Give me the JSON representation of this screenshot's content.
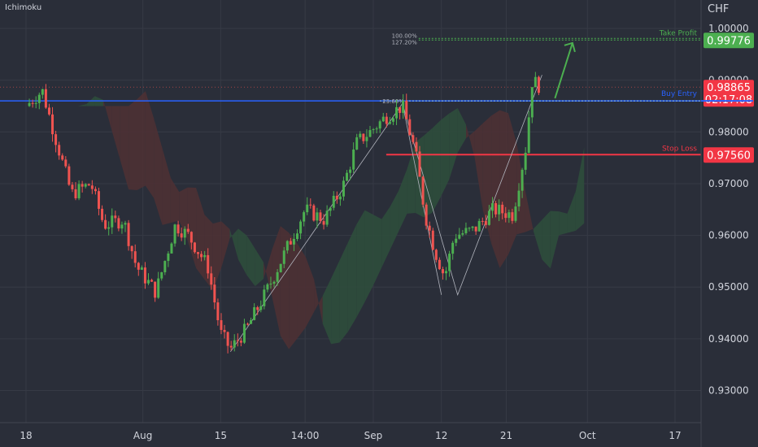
{
  "indicator_label": "Ichimoku",
  "currency": "CHF",
  "colors": {
    "background": "#2a2e39",
    "axis_bg": "#2a2e39",
    "grid": "#363a45",
    "text": "#d1d4dc",
    "bull": "#26a69a",
    "bull_candle": "#4caf50",
    "bear_candle": "#ef5350",
    "take_profit": "#4caf50",
    "buy_entry": "#2962ff",
    "stop_loss": "#f23645",
    "cloud_green": "#2e4f3c",
    "cloud_red": "#4f3034"
  },
  "levels": {
    "take_profit": {
      "label": "Take Profit",
      "price": 0.99776,
      "price_text": "0.99776"
    },
    "buy_entry": {
      "label": "Buy Entry",
      "price": 0.986
    },
    "stop_loss": {
      "label": "Stop Loss",
      "price": 0.9756,
      "price_text": "0.97560"
    },
    "current": {
      "price": 0.98865,
      "price_text": "0.98865",
      "countdown": "02:17:08"
    }
  },
  "fib_labels": {
    "fib_100": "100.00%",
    "fib_127": "127.20%",
    "fib_236": "23.60%"
  },
  "chart_data": {
    "type": "candlestick",
    "y_axis": {
      "unit": "CHF",
      "ylim": [
        0.9238,
        1.0055
      ],
      "ticks": [
        "1.00000",
        "0.99000",
        "0.98000",
        "0.97000",
        "0.96000",
        "0.95000",
        "0.94000",
        "0.93000"
      ],
      "tick_values": [
        1.0,
        0.99,
        0.98,
        0.97,
        0.96,
        0.95,
        0.94,
        0.93
      ]
    },
    "x_axis": {
      "ticks": [
        "18",
        "Aug",
        "15",
        "14:00",
        "Sep",
        "12",
        "21",
        "Oct",
        "17"
      ],
      "tick_positions": [
        0.0,
        0.18,
        0.3,
        0.43,
        0.535,
        0.64,
        0.74,
        0.865,
        1.0
      ]
    },
    "price_path": [
      {
        "t": 0.0,
        "p": 0.985
      },
      {
        "t": 0.025,
        "p": 0.988
      },
      {
        "t": 0.045,
        "p": 0.979
      },
      {
        "t": 0.07,
        "p": 0.968
      },
      {
        "t": 0.1,
        "p": 0.97
      },
      {
        "t": 0.12,
        "p": 0.962
      },
      {
        "t": 0.15,
        "p": 0.963
      },
      {
        "t": 0.17,
        "p": 0.954
      },
      {
        "t": 0.2,
        "p": 0.949
      },
      {
        "t": 0.23,
        "p": 0.962
      },
      {
        "t": 0.25,
        "p": 0.96
      },
      {
        "t": 0.28,
        "p": 0.954
      },
      {
        "t": 0.3,
        "p": 0.941
      },
      {
        "t": 0.315,
        "p": 0.938
      },
      {
        "t": 0.34,
        "p": 0.942
      },
      {
        "t": 0.37,
        "p": 0.949
      },
      {
        "t": 0.4,
        "p": 0.957
      },
      {
        "t": 0.43,
        "p": 0.965
      },
      {
        "t": 0.46,
        "p": 0.963
      },
      {
        "t": 0.49,
        "p": 0.97
      },
      {
        "t": 0.51,
        "p": 0.978
      },
      {
        "t": 0.53,
        "p": 0.98
      },
      {
        "t": 0.555,
        "p": 0.983
      },
      {
        "t": 0.58,
        "p": 0.985
      },
      {
        "t": 0.6,
        "p": 0.976
      },
      {
        "t": 0.615,
        "p": 0.964
      },
      {
        "t": 0.63,
        "p": 0.957
      },
      {
        "t": 0.645,
        "p": 0.952
      },
      {
        "t": 0.66,
        "p": 0.96
      },
      {
        "t": 0.69,
        "p": 0.961
      },
      {
        "t": 0.72,
        "p": 0.965
      },
      {
        "t": 0.75,
        "p": 0.964
      },
      {
        "t": 0.77,
        "p": 0.977
      },
      {
        "t": 0.78,
        "p": 0.99
      },
      {
        "t": 0.79,
        "p": 0.989
      }
    ]
  }
}
